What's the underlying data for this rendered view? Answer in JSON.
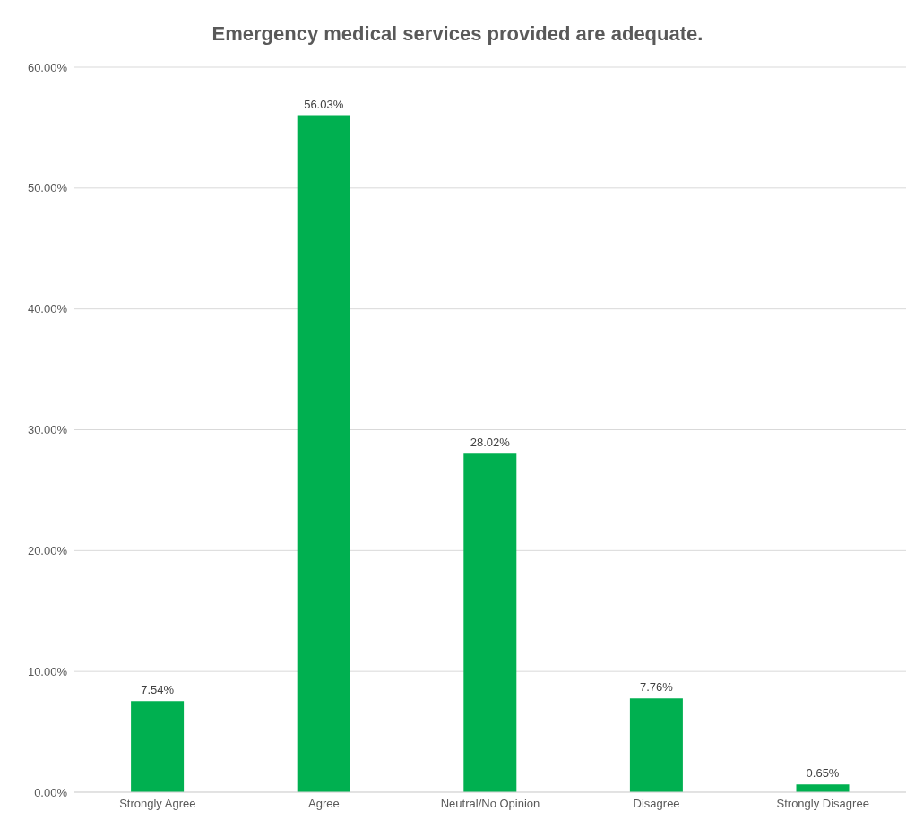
{
  "chart_data": {
    "type": "bar",
    "title": "Emergency medical services provided are adequate.",
    "categories": [
      "Strongly Agree",
      "Agree",
      "Neutral/No Opinion",
      "Disagree",
      "Strongly Disagree"
    ],
    "values": [
      7.54,
      56.03,
      28.02,
      7.76,
      0.65
    ],
    "value_labels": [
      "7.54%",
      "56.03%",
      "28.02%",
      "7.76%",
      "0.65%"
    ],
    "color": "#00b050",
    "ylim": [
      0,
      60
    ],
    "yticks": [
      {
        "value": 0,
        "label": "0.00%"
      },
      {
        "value": 10,
        "label": "10.00%"
      },
      {
        "value": 20,
        "label": "20.00%"
      },
      {
        "value": 30,
        "label": "30.00%"
      },
      {
        "value": 40,
        "label": "40.00%"
      },
      {
        "value": 50,
        "label": "50.00%"
      },
      {
        "value": 60,
        "label": "60.00%"
      }
    ],
    "grid": "y",
    "legend": false
  }
}
